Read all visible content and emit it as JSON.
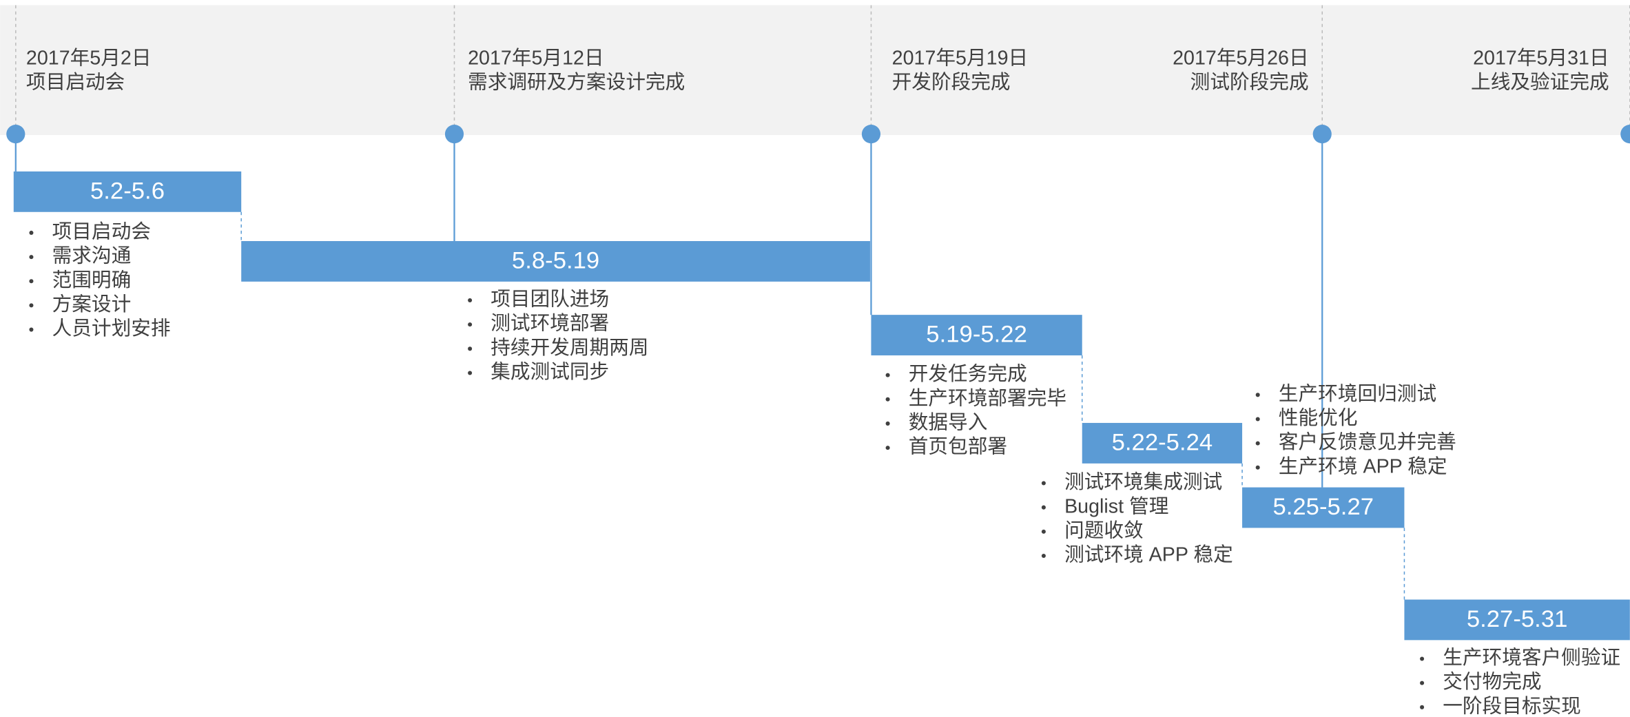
{
  "milestones": [
    {
      "date": "2017年5月2日",
      "label": "项目启动会"
    },
    {
      "date": "2017年5月12日",
      "label": "需求调研及方案设计完成"
    },
    {
      "date": "2017年5月19日",
      "label": "开发阶段完成"
    },
    {
      "date": "2017年5月26日",
      "label": "测试阶段完成"
    },
    {
      "date": "2017年5月31日",
      "label": "上线及验证完成"
    }
  ],
  "phases": [
    {
      "range": "5.2-5.6",
      "items": [
        "项目启动会",
        "需求沟通",
        "范围明确",
        "方案设计",
        "人员计划安排"
      ]
    },
    {
      "range": "5.8-5.19",
      "items": [
        "项目团队进场",
        "测试环境部署",
        "持续开发周期两周",
        "集成测试同步"
      ]
    },
    {
      "range": "5.19-5.22",
      "items": [
        "开发任务完成",
        "生产环境部署完毕",
        "数据导入",
        "首页包部署"
      ]
    },
    {
      "range": "5.22-5.24",
      "items": [
        "测试环境集成测试",
        "Buglist 管理",
        "问题收敛",
        "测试环境 APP 稳定"
      ]
    },
    {
      "range": "5.25-5.27",
      "items": [
        "生产环境回归测试",
        "性能优化",
        "客户反馈意见并完善",
        "生产环境 APP 稳定"
      ]
    },
    {
      "range": "5.27-5.31",
      "items": [
        "生产环境客户侧验证",
        "交付物完成",
        "一阶段目标实现"
      ]
    }
  ]
}
